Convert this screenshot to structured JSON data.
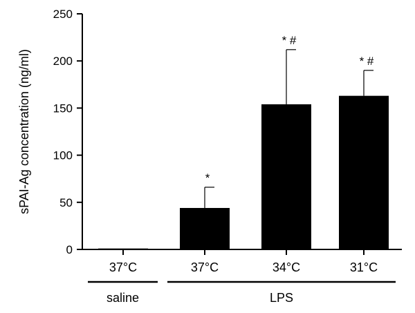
{
  "chart_data": {
    "type": "bar",
    "title": "",
    "xlabel": "",
    "ylabel": "sPAI-Ag concentration (ng/ml)",
    "ylim": [
      0,
      250
    ],
    "yticks": [
      0,
      50,
      100,
      150,
      200,
      250
    ],
    "categories": [
      "37°C",
      "37°C",
      "34°C",
      "31°C"
    ],
    "values": [
      1,
      44,
      154,
      163
    ],
    "error_upper": [
      0,
      22,
      58,
      27
    ],
    "annotations": [
      "",
      "*",
      "* #",
      "* #"
    ],
    "groups": [
      {
        "label": "saline",
        "categories": [
          0
        ]
      },
      {
        "label": "LPS",
        "categories": [
          1,
          2,
          3
        ]
      }
    ],
    "bar_color": "#000000",
    "grid": false,
    "legend": "none"
  }
}
